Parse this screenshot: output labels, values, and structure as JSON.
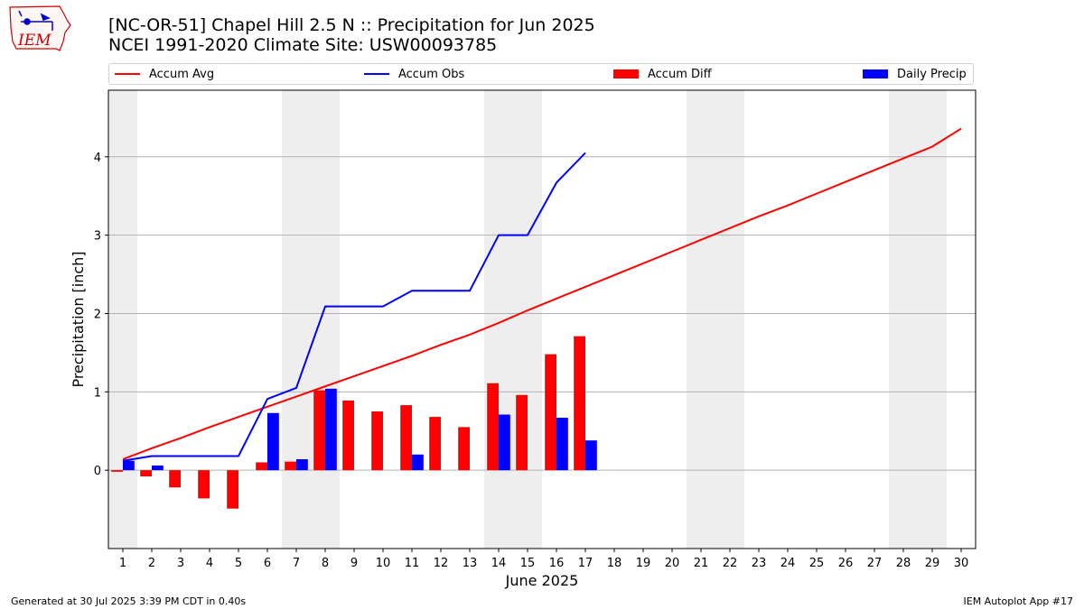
{
  "header": {
    "title_line1": "[NC-OR-51] Chapel Hill 2.5 N :: Precipitation for Jun 2025",
    "title_line2": "NCEI 1991-2020 Climate Site: USW00093785",
    "logo_text": "IEM"
  },
  "footer": {
    "left": "Generated at 30 Jul 2025 3:39 PM CDT in 0.40s",
    "right": "IEM Autoplot App #17"
  },
  "colors": {
    "accum_avg": "#ff0000",
    "accum_obs": "#0000ff",
    "accum_diff": "#ff0000",
    "daily_precip": "#0000ff",
    "weekend_shade": "#eeeeee",
    "grid": "#b0b0b0"
  },
  "chart_data": {
    "type": "bar",
    "xlabel": "June 2025",
    "ylabel": "Precipitation [inch]",
    "xlim": [
      0.5,
      30.5
    ],
    "ylim": [
      -1.0,
      4.85
    ],
    "yticks": [
      0,
      1,
      2,
      3,
      4
    ],
    "grid": "horizontal",
    "legend_placement": "top",
    "days": [
      1,
      2,
      3,
      4,
      5,
      6,
      7,
      8,
      9,
      10,
      11,
      12,
      13,
      14,
      15,
      16,
      17,
      18,
      19,
      20,
      21,
      22,
      23,
      24,
      25,
      26,
      27,
      28,
      29,
      30
    ],
    "weekend_days": [
      1,
      7,
      8,
      14,
      15,
      21,
      22,
      28,
      29
    ],
    "series": [
      {
        "name": "Accum Avg",
        "kind": "line",
        "values": [
          0.14,
          0.28,
          0.41,
          0.55,
          0.68,
          0.81,
          0.94,
          1.07,
          1.2,
          1.33,
          1.46,
          1.6,
          1.73,
          1.88,
          2.04,
          2.19,
          2.34,
          2.49,
          2.64,
          2.79,
          2.94,
          3.09,
          3.24,
          3.38,
          3.53,
          3.68,
          3.83,
          3.98,
          4.13,
          4.36
        ]
      },
      {
        "name": "Accum Obs",
        "kind": "line",
        "values": [
          0.12,
          0.18,
          0.18,
          0.18,
          0.18,
          0.91,
          1.05,
          2.09,
          2.09,
          2.09,
          2.29,
          2.29,
          2.29,
          3.0,
          3.0,
          3.67,
          4.05
        ]
      },
      {
        "name": "Accum Diff",
        "kind": "bar",
        "values": [
          -0.02,
          -0.08,
          -0.22,
          -0.36,
          -0.49,
          0.1,
          0.11,
          1.02,
          0.89,
          0.75,
          0.83,
          0.68,
          0.55,
          1.11,
          0.96,
          1.48,
          1.71
        ]
      },
      {
        "name": "Daily Precip",
        "kind": "bar",
        "values": [
          0.12,
          0.06,
          0,
          0,
          0,
          0.73,
          0.14,
          1.04,
          0,
          0,
          0.2,
          0,
          0,
          0.71,
          0,
          0.67,
          0.38
        ]
      }
    ]
  }
}
